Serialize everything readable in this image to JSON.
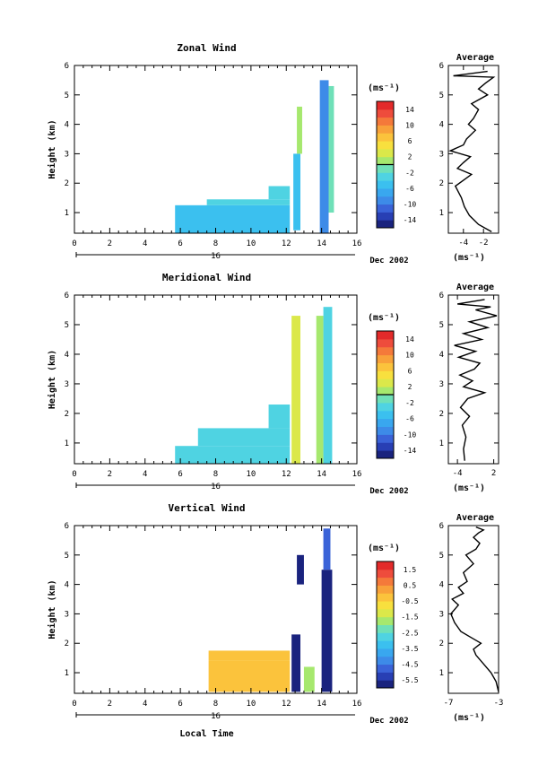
{
  "chart_data": [
    {
      "type": "heatmap",
      "title": "Zonal Wind",
      "ylabel": "Height (km)",
      "xlabel": "",
      "xlim": [
        0,
        16
      ],
      "ylim": [
        0.3,
        6
      ],
      "xticks": [
        0,
        2,
        4,
        6,
        8,
        10,
        12,
        14,
        16
      ],
      "yticks": [
        1,
        2,
        3,
        4,
        5,
        6
      ],
      "date_label": "16",
      "date_suffix": "Dec 2002",
      "colorbar": {
        "unit": "(ms⁻¹)",
        "ticks": [
          "14",
          "10",
          "6",
          "2",
          "-2",
          "-6",
          "-10",
          "-14"
        ],
        "tick_values": [
          14,
          10,
          6,
          2,
          -2,
          -6,
          -10,
          -14
        ],
        "range": [
          -16,
          16
        ],
        "zero_line": 0
      },
      "regions": [
        {
          "x0": 5.7,
          "x1": 12.2,
          "y0": 0.3,
          "y1": 1.25,
          "value": -5
        },
        {
          "x0": 7.5,
          "x1": 12.2,
          "y0": 1.25,
          "y1": 1.45,
          "value": -4
        },
        {
          "x0": 11.0,
          "x1": 12.2,
          "y0": 1.45,
          "y1": 1.9,
          "value": -3
        },
        {
          "x0": 12.4,
          "x1": 12.8,
          "y0": 0.4,
          "y1": 3.0,
          "value": -6
        },
        {
          "x0": 12.6,
          "x1": 12.9,
          "y0": 3.0,
          "y1": 4.6,
          "value": 0
        },
        {
          "x0": 13.9,
          "x1": 14.4,
          "y0": 0.3,
          "y1": 5.5,
          "value": -9
        },
        {
          "x0": 14.4,
          "x1": 14.7,
          "y0": 1.0,
          "y1": 5.3,
          "value": -2
        }
      ],
      "profile": {
        "title": "Average",
        "xlabel": "(ms⁻¹)",
        "xlim": [
          -5.5,
          -0.5
        ],
        "ylim": [
          0.3,
          6
        ],
        "xticks": [
          -4,
          -2
        ],
        "yticks": [
          1,
          2,
          3,
          4,
          5,
          6
        ],
        "x": [
          -1.2,
          -2.5,
          -3.4,
          -3.9,
          -4.2,
          -4.5,
          -4.8,
          -3.2,
          -4.6,
          -4.0,
          -3.3,
          -5.3,
          -4.0,
          -3.7,
          -2.8,
          -3.5,
          -3.0,
          -2.5,
          -3.2,
          -1.6,
          -2.5,
          -1.8,
          -1.0,
          -5.0,
          -1.6
        ],
        "y": [
          0.35,
          0.6,
          0.9,
          1.2,
          1.5,
          1.7,
          1.9,
          2.3,
          2.5,
          2.7,
          2.9,
          3.1,
          3.3,
          3.5,
          3.8,
          4.0,
          4.2,
          4.5,
          4.7,
          5.0,
          5.2,
          5.4,
          5.6,
          5.65,
          5.8
        ]
      }
    },
    {
      "type": "heatmap",
      "title": "Meridional Wind",
      "ylabel": "Height (km)",
      "xlabel": "",
      "xlim": [
        0,
        16
      ],
      "ylim": [
        0.3,
        6
      ],
      "xticks": [
        0,
        2,
        4,
        6,
        8,
        10,
        12,
        14,
        16
      ],
      "yticks": [
        1,
        2,
        3,
        4,
        5,
        6
      ],
      "date_label": "16",
      "date_suffix": "Dec 2002",
      "colorbar": {
        "unit": "(ms⁻¹)",
        "ticks": [
          "14",
          "10",
          "6",
          "2",
          "-2",
          "-6",
          "-10",
          "-14"
        ],
        "tick_values": [
          14,
          10,
          6,
          2,
          -2,
          -6,
          -10,
          -14
        ],
        "range": [
          -16,
          16
        ],
        "zero_line": 0
      },
      "regions": [
        {
          "x0": 5.7,
          "x1": 12.2,
          "y0": 0.3,
          "y1": 0.9,
          "value": -3
        },
        {
          "x0": 7.0,
          "x1": 12.2,
          "y0": 0.9,
          "y1": 1.5,
          "value": -4
        },
        {
          "x0": 11.0,
          "x1": 12.2,
          "y0": 1.5,
          "y1": 2.3,
          "value": -3
        },
        {
          "x0": 12.3,
          "x1": 12.8,
          "y0": 0.3,
          "y1": 5.3,
          "value": 3
        },
        {
          "x0": 13.7,
          "x1": 14.1,
          "y0": 0.3,
          "y1": 5.3,
          "value": 0
        },
        {
          "x0": 14.1,
          "x1": 14.6,
          "y0": 0.3,
          "y1": 5.6,
          "value": -3
        }
      ],
      "profile": {
        "title": "Average",
        "xlabel": "(ms⁻¹)",
        "xlim": [
          -5.5,
          2.8
        ],
        "ylim": [
          0.3,
          6
        ],
        "xticks": [
          -4,
          2
        ],
        "yticks": [
          1,
          2,
          3,
          4,
          5,
          6
        ],
        "x": [
          -2.8,
          -3.0,
          -2.6,
          -3.2,
          -2.0,
          -3.5,
          -2.3,
          0.5,
          -3.0,
          -1.5,
          -3.6,
          -1.2,
          -0.3,
          -3.8,
          -1.0,
          -4.5,
          0.0,
          -3.0,
          1.0,
          -2.0,
          2.5,
          -1.0,
          1.5,
          -4.0,
          0.5
        ],
        "y": [
          0.4,
          0.8,
          1.2,
          1.6,
          1.9,
          2.2,
          2.5,
          2.7,
          2.9,
          3.1,
          3.3,
          3.5,
          3.7,
          3.9,
          4.1,
          4.3,
          4.5,
          4.7,
          4.9,
          5.1,
          5.3,
          5.5,
          5.6,
          5.7,
          5.85
        ]
      }
    },
    {
      "type": "heatmap",
      "title": "Vertical Wind",
      "ylabel": "Height (km)",
      "xlabel": "Local Time",
      "xlim": [
        0,
        16
      ],
      "ylim": [
        0.3,
        6
      ],
      "xticks": [
        0,
        2,
        4,
        6,
        8,
        10,
        12,
        14,
        16
      ],
      "yticks": [
        1,
        2,
        3,
        4,
        5,
        6
      ],
      "date_label": "16",
      "date_suffix": "Dec 2002",
      "colorbar": {
        "unit": "(ms⁻¹)",
        "ticks": [
          "1.5",
          "0.5",
          "-0.5",
          "-1.5",
          "-2.5",
          "-3.5",
          "-4.5",
          "-5.5"
        ],
        "tick_values": [
          1.5,
          0.5,
          -0.5,
          -1.5,
          -2.5,
          -3.5,
          -4.5,
          -5.5
        ],
        "range": [
          -6,
          2
        ]
      },
      "regions": [
        {
          "x0": 7.6,
          "x1": 12.2,
          "y0": 0.35,
          "y1": 1.4,
          "value": -0.5
        },
        {
          "x0": 7.6,
          "x1": 12.2,
          "y0": 1.4,
          "y1": 1.75,
          "value": -0.2
        },
        {
          "x0": 12.3,
          "x1": 12.8,
          "y0": 0.35,
          "y1": 2.3,
          "value": -5.8
        },
        {
          "x0": 12.6,
          "x1": 13.0,
          "y0": 4.0,
          "y1": 5.0,
          "value": -5.8
        },
        {
          "x0": 13.0,
          "x1": 13.6,
          "y0": 0.35,
          "y1": 1.2,
          "value": -2.0
        },
        {
          "x0": 14.0,
          "x1": 14.6,
          "y0": 0.35,
          "y1": 4.5,
          "value": -5.8
        },
        {
          "x0": 14.1,
          "x1": 14.5,
          "y0": 4.5,
          "y1": 5.9,
          "value": -5.0
        }
      ],
      "profile": {
        "title": "Average",
        "xlabel": "(ms⁻¹)",
        "xlim": [
          -7,
          -3
        ],
        "ylim": [
          0.3,
          6
        ],
        "xticks": [
          -7,
          -3
        ],
        "yticks": [
          1,
          2,
          3,
          4,
          5,
          6
        ],
        "x": [
          -3.0,
          -3.2,
          -3.6,
          -4.2,
          -4.8,
          -5.0,
          -4.4,
          -5.2,
          -6.0,
          -6.5,
          -6.8,
          -6.2,
          -6.7,
          -5.8,
          -6.2,
          -5.5,
          -5.8,
          -5.0,
          -5.6,
          -4.8,
          -4.5,
          -5.0,
          -4.6,
          -4.2,
          -4.8
        ],
        "y": [
          0.35,
          0.7,
          1.0,
          1.3,
          1.6,
          1.8,
          2.0,
          2.2,
          2.4,
          2.7,
          3.0,
          3.3,
          3.5,
          3.7,
          3.9,
          4.1,
          4.4,
          4.7,
          5.0,
          5.2,
          5.4,
          5.6,
          5.75,
          5.85,
          5.95
        ]
      }
    }
  ]
}
